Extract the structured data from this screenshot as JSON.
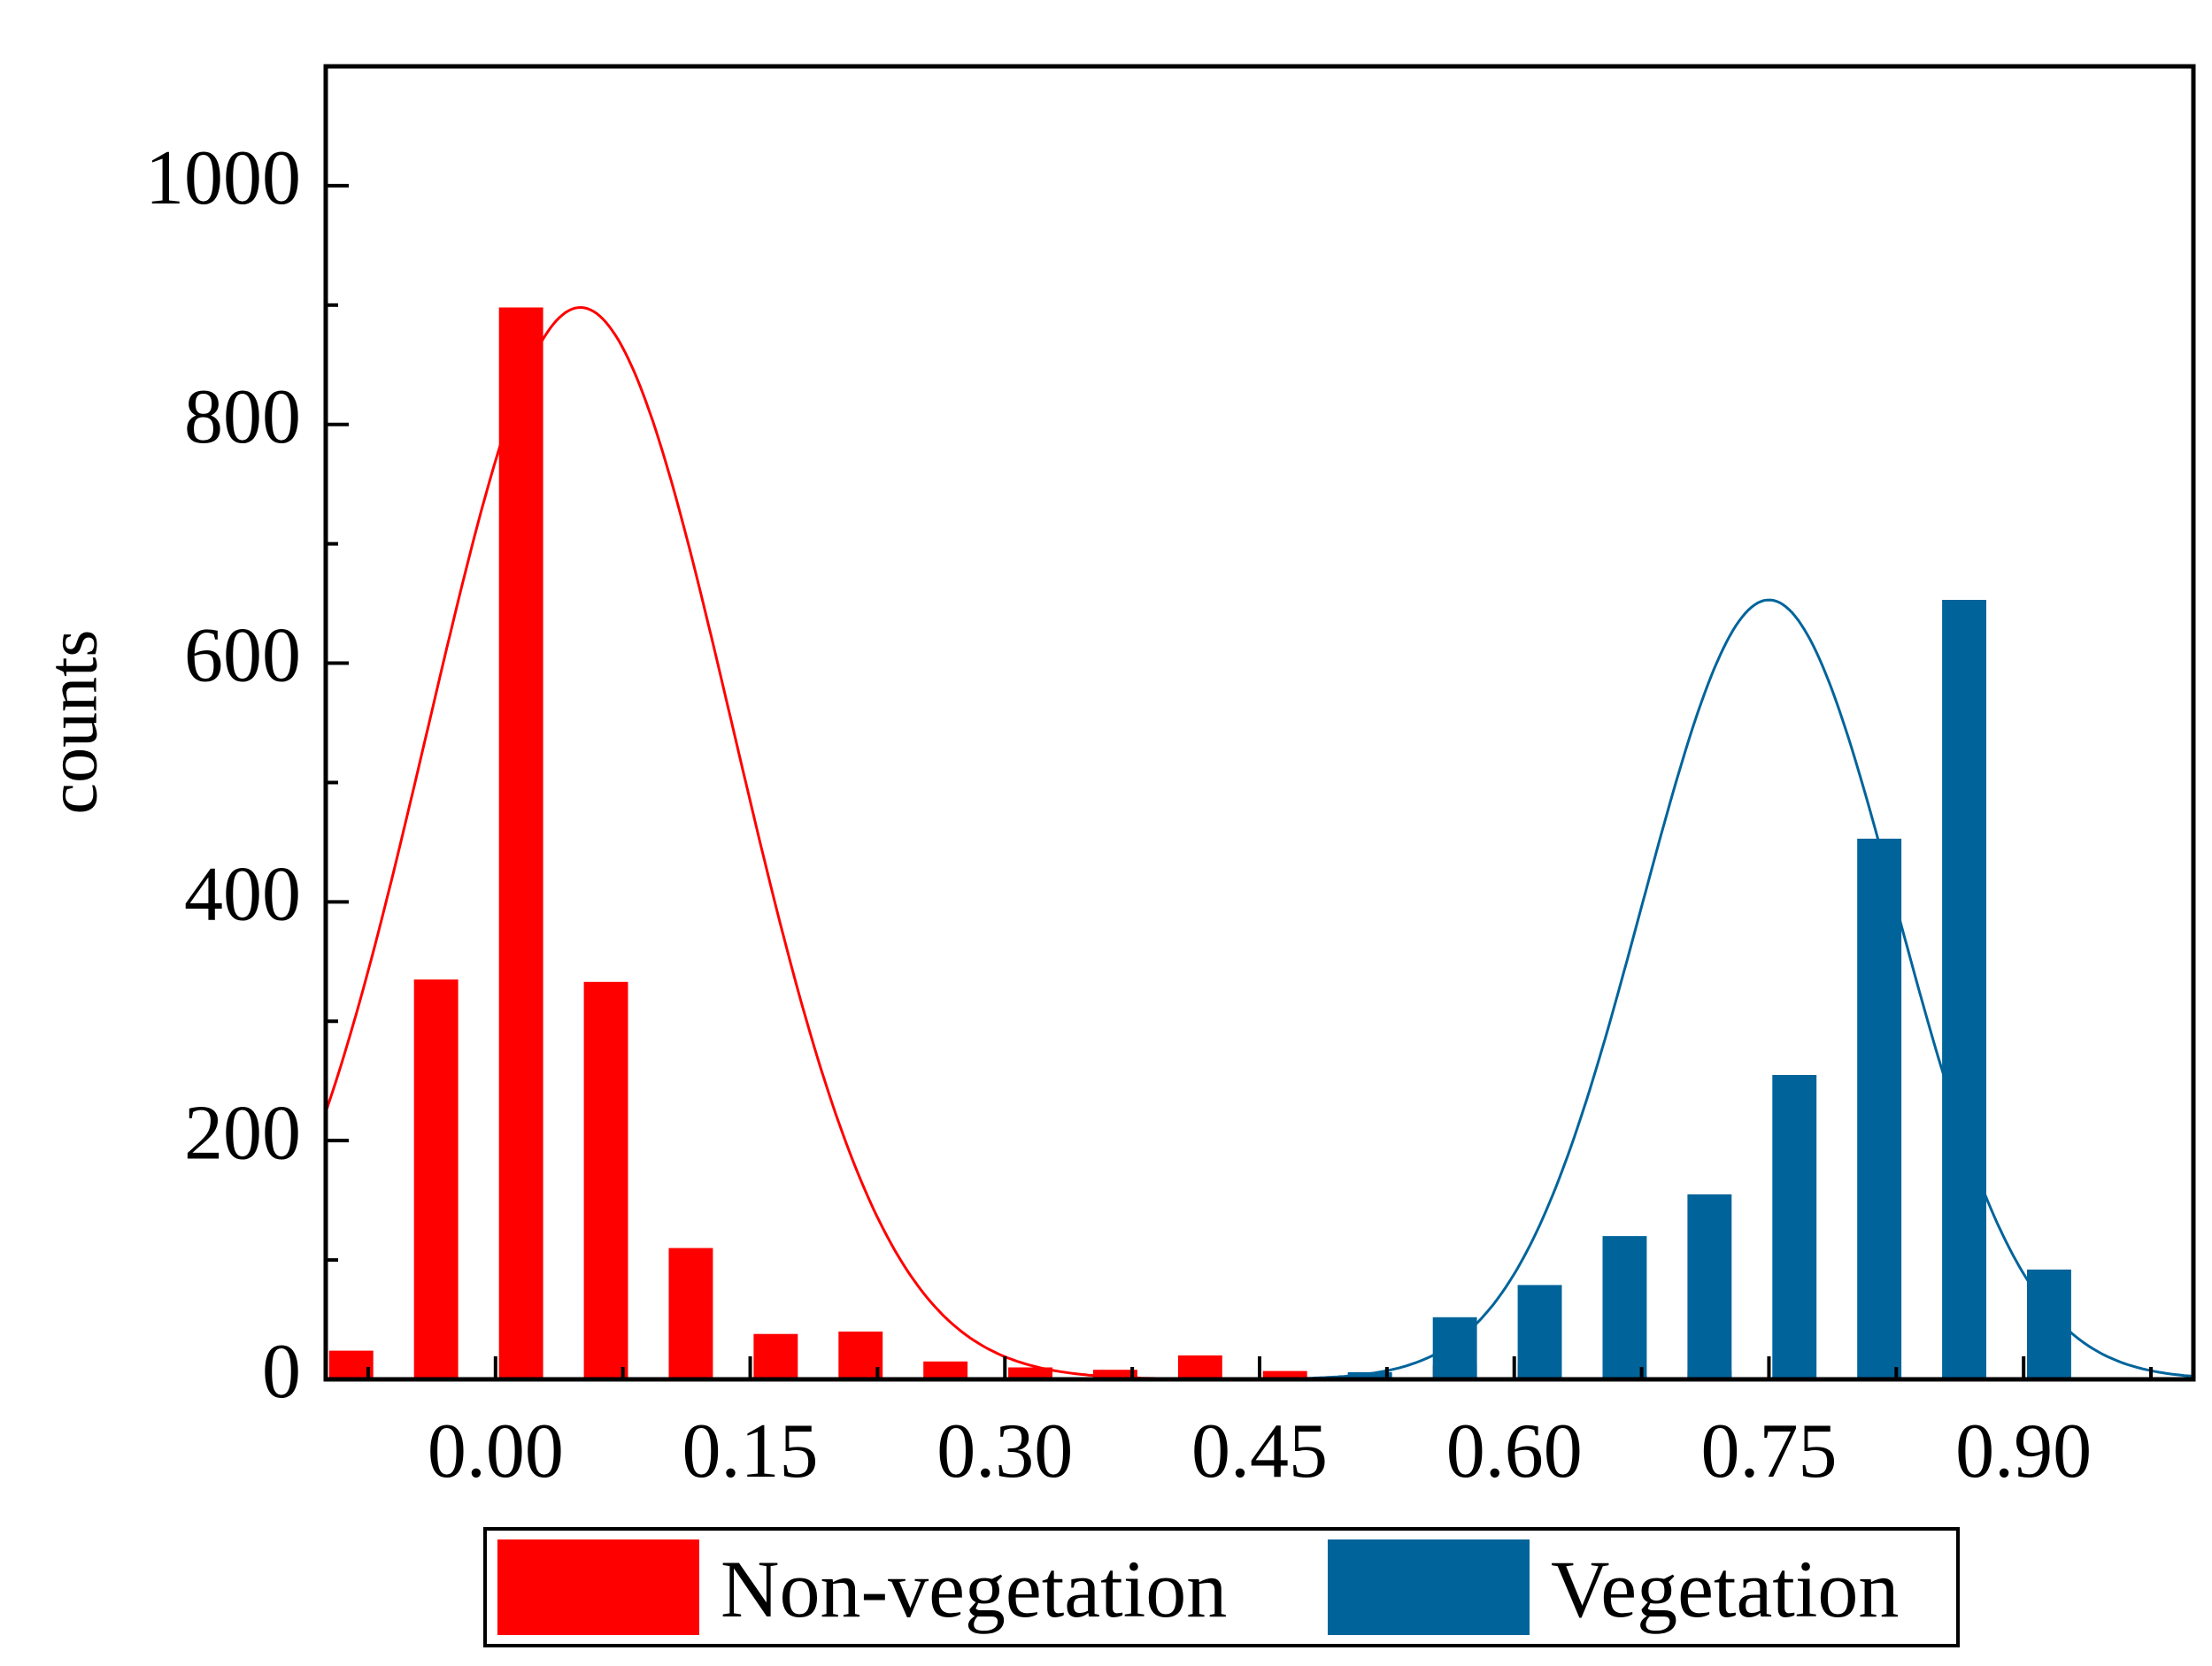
{
  "chart_data": {
    "type": "bar",
    "title": "",
    "xlabel": "",
    "ylabel": "counts",
    "xlim": [
      -0.1,
      1.0
    ],
    "ylim": [
      0,
      1100
    ],
    "xticks": [
      0.0,
      0.15,
      0.3,
      0.45,
      0.6,
      0.75,
      0.9
    ],
    "xtick_labels": [
      "0.00",
      "0.15",
      "0.30",
      "0.45",
      "0.60",
      "0.75",
      "0.90"
    ],
    "yticks": [
      0,
      200,
      400,
      600,
      800,
      1000
    ],
    "ytick_labels": [
      "0",
      "200",
      "400",
      "600",
      "800",
      "1000"
    ],
    "bar_width": 0.026,
    "grid": false,
    "legend_position": "bottom",
    "series": [
      {
        "name": "Non-vegetation",
        "color": "#ff0000",
        "x": [
          -0.085,
          -0.035,
          0.015,
          0.065,
          0.115,
          0.165,
          0.215,
          0.265,
          0.315,
          0.365,
          0.415,
          0.465,
          0.515,
          0.565,
          0.615,
          0.665,
          0.715
        ],
        "values": [
          24,
          335,
          898,
          333,
          110,
          38,
          40,
          15,
          10,
          8,
          20,
          7,
          5,
          12,
          12,
          3,
          7
        ]
      },
      {
        "name": "Vegetation",
        "color": "#00649b",
        "x": [
          0.465,
          0.515,
          0.565,
          0.615,
          0.665,
          0.715,
          0.765,
          0.815,
          0.865,
          0.915
        ],
        "values": [
          1,
          6,
          52,
          79,
          120,
          155,
          255,
          453,
          653,
          92
        ]
      }
    ],
    "fits": [
      {
        "name": "Non-vegetation",
        "type": "gaussian",
        "color": "#ff0000",
        "amplitude": 898,
        "center": 0.05,
        "sigma": 0.09
      },
      {
        "name": "Vegetation",
        "type": "gaussian",
        "color": "#00649b",
        "amplitude": 653,
        "center": 0.75,
        "sigma": 0.075
      }
    ]
  }
}
